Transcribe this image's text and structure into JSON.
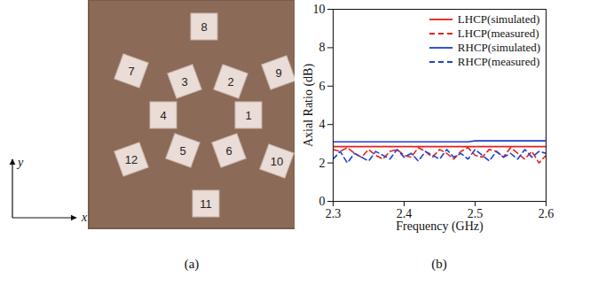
{
  "figure": {
    "captions": [
      "(a)",
      "(b)"
    ]
  },
  "diagram": {
    "axis_labels": {
      "x": "x",
      "y": "y"
    },
    "elements": [
      "1",
      "2",
      "3",
      "4",
      "5",
      "6",
      "7",
      "8",
      "9",
      "10",
      "11",
      "12"
    ]
  },
  "chart_data": {
    "type": "line",
    "xlabel": "Frequency (GHz)",
    "ylabel": "Axial Ratio (dB)",
    "x": [
      2.3,
      2.31,
      2.32,
      2.33,
      2.34,
      2.35,
      2.36,
      2.37,
      2.38,
      2.39,
      2.4,
      2.41,
      2.42,
      2.43,
      2.44,
      2.45,
      2.46,
      2.47,
      2.48,
      2.49,
      2.5,
      2.51,
      2.52,
      2.53,
      2.54,
      2.55,
      2.56,
      2.57,
      2.58,
      2.59,
      2.6
    ],
    "series": [
      {
        "name": "LHCP(simulated)",
        "color": "#e3211c",
        "line_style": "solid",
        "values": [
          2.85,
          2.85,
          2.85,
          2.85,
          2.85,
          2.85,
          2.85,
          2.85,
          2.85,
          2.85,
          2.85,
          2.85,
          2.85,
          2.85,
          2.85,
          2.85,
          2.85,
          2.85,
          2.85,
          2.85,
          2.85,
          2.85,
          2.85,
          2.85,
          2.85,
          2.85,
          2.85,
          2.85,
          2.85,
          2.85,
          2.85
        ]
      },
      {
        "name": "LHCP(measured)",
        "color": "#e3211c",
        "line_style": "dashed",
        "values": [
          2.7,
          2.6,
          2.8,
          2.5,
          2.3,
          2.7,
          2.4,
          2.2,
          2.6,
          2.7,
          2.4,
          2.3,
          2.8,
          2.6,
          2.3,
          2.7,
          2.5,
          2.2,
          2.6,
          2.8,
          2.4,
          2.3,
          2.7,
          2.6,
          2.3,
          2.8,
          2.5,
          2.2,
          2.6,
          2.0,
          2.4
        ]
      },
      {
        "name": "RHCP(simulated)",
        "color": "#1f3fd0",
        "line_style": "solid",
        "values": [
          3.1,
          3.1,
          3.1,
          3.1,
          3.1,
          3.1,
          3.1,
          3.1,
          3.1,
          3.1,
          3.1,
          3.1,
          3.1,
          3.1,
          3.1,
          3.1,
          3.1,
          3.1,
          3.1,
          3.1,
          3.15,
          3.15,
          3.15,
          3.15,
          3.15,
          3.15,
          3.15,
          3.15,
          3.15,
          3.15,
          3.15
        ]
      },
      {
        "name": "RHCP(measured)",
        "color": "#1f3fd0",
        "line_style": "dashed",
        "values": [
          2.2,
          2.6,
          2.0,
          2.5,
          2.3,
          2.1,
          2.6,
          2.4,
          2.2,
          2.7,
          2.3,
          2.5,
          2.1,
          2.6,
          2.4,
          2.2,
          2.7,
          2.3,
          2.5,
          2.2,
          2.7,
          2.4,
          2.1,
          2.6,
          2.3,
          2.5,
          2.2,
          2.7,
          2.3,
          2.6,
          2.5
        ]
      }
    ],
    "xlim": [
      2.3,
      2.6
    ],
    "xticks": [
      2.3,
      2.4,
      2.5,
      2.6
    ],
    "ylim": [
      0,
      10
    ],
    "yticks": [
      0,
      2,
      4,
      6,
      8,
      10
    ],
    "grid": false,
    "legend": "upper right"
  }
}
